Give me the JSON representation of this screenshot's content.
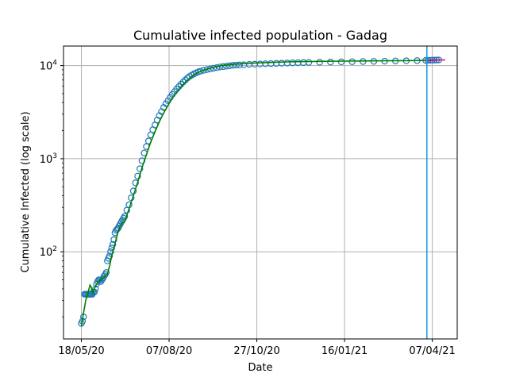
{
  "chart_data": {
    "type": "line",
    "title": "Cumulative infected population - Gadag",
    "xlabel": "Date",
    "ylabel": "Cumulative Infected (log scale)",
    "yscale": "log",
    "grid": true,
    "x_ticks": [
      {
        "day": 0,
        "label": "18/05/20"
      },
      {
        "day": 81,
        "label": "07/08/20"
      },
      {
        "day": 162,
        "label": "27/10/20"
      },
      {
        "day": 243,
        "label": "16/01/21"
      },
      {
        "day": 324,
        "label": "07/04/21"
      }
    ],
    "y_ticks": [
      {
        "value": 100,
        "label": "10^2",
        "base": "10",
        "exp": "2"
      },
      {
        "value": 1000,
        "label": "10^3",
        "base": "10",
        "exp": "3"
      },
      {
        "value": 10000,
        "label": "10^4",
        "base": "10",
        "exp": "4"
      }
    ],
    "vertical_line_day": 319,
    "series": [
      {
        "role": "observed",
        "marker": "circle",
        "color": "#1f77b4",
        "x": [
          0,
          1,
          2,
          3,
          4,
          5,
          6,
          7,
          8,
          9,
          10,
          11,
          12,
          13,
          14,
          15,
          16,
          17,
          18,
          19,
          20,
          21,
          22,
          23,
          24,
          25,
          26,
          27,
          28,
          29,
          30,
          31,
          32,
          33,
          34,
          35,
          36,
          37,
          38,
          39,
          40,
          42,
          44,
          46,
          48,
          50,
          52,
          54,
          56,
          58,
          60,
          62,
          64,
          66,
          68,
          70,
          72,
          74,
          76,
          78,
          80,
          82,
          84,
          86,
          88,
          90,
          92,
          94,
          96,
          98,
          100,
          102,
          104,
          106,
          108,
          110,
          113,
          116,
          119,
          122,
          125,
          128,
          131,
          134,
          137,
          140,
          143,
          146,
          150,
          155,
          160,
          165,
          170,
          175,
          180,
          185,
          190,
          195,
          200,
          205,
          210,
          220,
          230,
          240,
          250,
          260,
          270,
          280,
          290,
          300,
          310,
          318,
          320,
          322,
          324,
          326,
          328,
          330
        ],
        "y": [
          17,
          18,
          20,
          35,
          35,
          35,
          35,
          35,
          35,
          35,
          35,
          37,
          37,
          40,
          45,
          48,
          50,
          50,
          48,
          50,
          52,
          55,
          57,
          60,
          80,
          85,
          90,
          100,
          110,
          120,
          135,
          160,
          170,
          175,
          180,
          190,
          200,
          210,
          220,
          230,
          240,
          280,
          320,
          380,
          450,
          550,
          650,
          780,
          950,
          1150,
          1350,
          1550,
          1800,
          2050,
          2300,
          2600,
          2900,
          3200,
          3550,
          3900,
          4200,
          4550,
          4900,
          5250,
          5600,
          5950,
          6300,
          6650,
          7000,
          7350,
          7650,
          7900,
          8150,
          8350,
          8550,
          8700,
          8900,
          9050,
          9200,
          9350,
          9500,
          9650,
          9750,
          9850,
          9950,
          10050,
          10100,
          10150,
          10200,
          10300,
          10350,
          10400,
          10450,
          10500,
          10550,
          10600,
          10650,
          10700,
          10750,
          10780,
          10800,
          10850,
          10900,
          10950,
          11000,
          11050,
          11100,
          11150,
          11200,
          11250,
          11300,
          11350,
          11380,
          11400,
          11420,
          11440,
          11460,
          11480
        ]
      },
      {
        "role": "fit",
        "color": "#008000",
        "x": [
          0,
          2,
          4,
          6,
          8,
          9,
          10,
          11,
          12,
          14,
          16,
          18,
          20,
          22,
          24,
          26,
          28,
          30,
          32,
          34,
          36,
          38,
          40,
          44,
          48,
          52,
          56,
          60,
          64,
          68,
          72,
          76,
          80,
          84,
          88,
          92,
          96,
          100,
          104,
          108,
          112,
          116,
          120,
          125,
          130,
          135,
          140,
          150,
          160,
          170,
          180,
          190,
          200,
          220,
          240,
          260,
          280,
          300,
          318
        ],
        "y": [
          16,
          22,
          30,
          36,
          44,
          42,
          38,
          36,
          40,
          45,
          48,
          50,
          52,
          55,
          58,
          70,
          90,
          110,
          135,
          165,
          190,
          205,
          210,
          290,
          400,
          560,
          800,
          1100,
          1500,
          1950,
          2500,
          3100,
          3750,
          4500,
          5200,
          5900,
          6650,
          7350,
          7950,
          8450,
          8850,
          9150,
          9450,
          9750,
          10000,
          10150,
          10300,
          10500,
          10650,
          10750,
          10850,
          10950,
          11000,
          11100,
          11150,
          11200,
          11250,
          11300,
          11350
        ]
      },
      {
        "role": "forecast",
        "color": "#e6007e",
        "x": [
          318,
          320,
          322,
          324,
          326,
          328,
          330,
          332,
          334,
          336
        ],
        "y": [
          11350,
          11360,
          11380,
          11400,
          11420,
          11440,
          11460,
          11480,
          11490,
          11500
        ]
      }
    ]
  }
}
